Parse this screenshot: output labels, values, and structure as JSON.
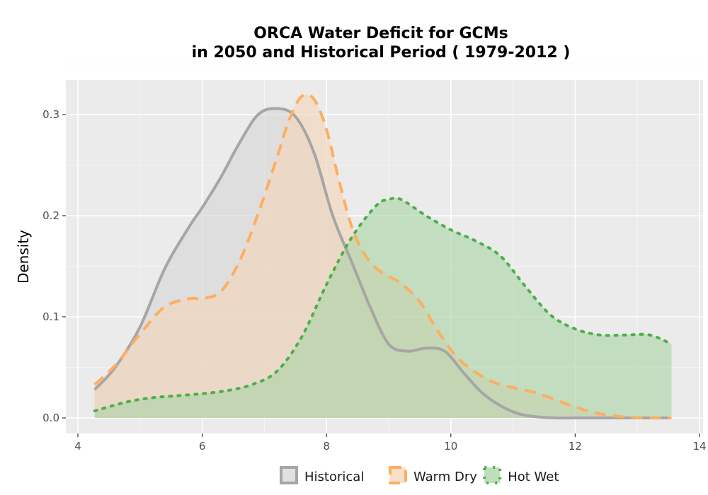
{
  "chart_data": {
    "type": "area",
    "title_lines": [
      "ORCA  Water Deficit for GCMs",
      "in 2050 and Historical Period ( 1979-2012 )"
    ],
    "xlabel": "",
    "ylabel": "Density",
    "xlim": [
      4,
      14
    ],
    "ylim": [
      0,
      0.335
    ],
    "x_ticks": [
      4,
      6,
      8,
      10,
      12,
      14
    ],
    "y_ticks": [
      0.0,
      0.1,
      0.2,
      0.3
    ],
    "y_tick_labels": [
      "0.0",
      "0.1",
      "0.2",
      "0.3"
    ],
    "grid": true,
    "legend_position": "bottom",
    "series": [
      {
        "name": "Historical",
        "line_color": "#a6a6a6",
        "fill_color": "#d6d6d6",
        "line_style": "solid",
        "x": [
          4.27,
          4.6,
          5.0,
          5.4,
          5.8,
          6.0,
          6.3,
          6.6,
          6.9,
          7.2,
          7.5,
          7.8,
          8.1,
          8.4,
          8.7,
          9.0,
          9.3,
          9.6,
          9.9,
          10.2,
          10.5,
          10.8,
          11.1,
          11.4,
          11.7,
          12.0,
          13.55
        ],
        "y": [
          0.028,
          0.05,
          0.09,
          0.148,
          0.19,
          0.208,
          0.238,
          0.272,
          0.3,
          0.306,
          0.298,
          0.262,
          0.2,
          0.155,
          0.11,
          0.073,
          0.066,
          0.069,
          0.066,
          0.045,
          0.025,
          0.012,
          0.004,
          0.001,
          0.0,
          0.0,
          0.0
        ]
      },
      {
        "name": "Warm Dry",
        "line_color": "#fdae61",
        "fill_color": "#f5d4b8",
        "line_style": "dashed",
        "x": [
          4.27,
          4.6,
          5.0,
          5.4,
          5.8,
          6.0,
          6.3,
          6.6,
          6.9,
          7.2,
          7.4,
          7.6,
          7.8,
          8.0,
          8.2,
          8.4,
          8.6,
          8.8,
          9.0,
          9.2,
          9.5,
          9.8,
          10.1,
          10.4,
          10.7,
          11.0,
          11.3,
          11.6,
          11.9,
          12.2,
          12.5,
          12.8,
          13.1,
          13.55
        ],
        "y": [
          0.033,
          0.052,
          0.083,
          0.11,
          0.118,
          0.118,
          0.125,
          0.155,
          0.202,
          0.257,
          0.295,
          0.318,
          0.315,
          0.285,
          0.235,
          0.19,
          0.163,
          0.148,
          0.14,
          0.133,
          0.115,
          0.085,
          0.06,
          0.045,
          0.035,
          0.03,
          0.026,
          0.02,
          0.013,
          0.007,
          0.003,
          0.001,
          0.0,
          0.0
        ]
      },
      {
        "name": "Hot Wet",
        "line_color": "#4daf4a",
        "fill_color": "#a9d3a4",
        "line_style": "dotted",
        "x": [
          4.27,
          4.8,
          5.2,
          5.6,
          6.0,
          6.4,
          6.8,
          7.2,
          7.6,
          8.0,
          8.4,
          8.8,
          9.0,
          9.2,
          9.6,
          10.0,
          10.4,
          10.8,
          11.2,
          11.6,
          12.0,
          12.4,
          12.8,
          13.2,
          13.55
        ],
        "y": [
          0.007,
          0.016,
          0.02,
          0.022,
          0.024,
          0.027,
          0.033,
          0.046,
          0.08,
          0.132,
          0.178,
          0.21,
          0.216,
          0.216,
          0.2,
          0.186,
          0.175,
          0.16,
          0.13,
          0.102,
          0.088,
          0.082,
          0.082,
          0.082,
          0.073
        ]
      }
    ]
  }
}
